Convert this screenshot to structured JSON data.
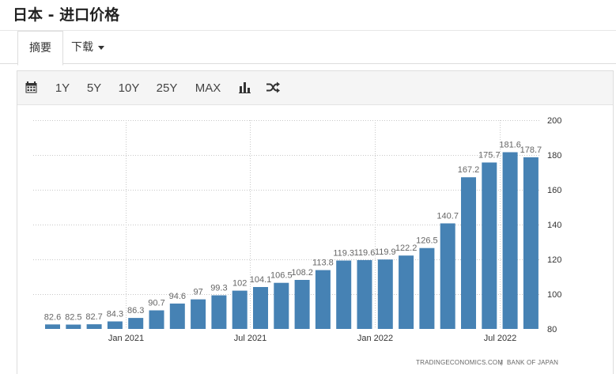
{
  "page": {
    "title": "日本 - 进口价格"
  },
  "tabs": [
    {
      "label": "摘要"
    },
    {
      "label": "下载"
    }
  ],
  "toolbar": {
    "calendar_icon": "calendar-icon",
    "ranges": [
      "1Y",
      "5Y",
      "10Y",
      "25Y",
      "MAX"
    ],
    "bar_chart_icon": "bar-chart-icon",
    "shuffle_icon": "shuffle-icon"
  },
  "source": {
    "left": "TRADINGECONOMICS.COM",
    "separator": "|",
    "right": "BANK OF JAPAN"
  },
  "chart_data": {
    "type": "bar",
    "title": "",
    "xlabel": "",
    "ylabel": "",
    "ylim": [
      80,
      200
    ],
    "yticks": [
      80,
      100,
      120,
      140,
      160,
      180,
      200
    ],
    "y_axis_side": "right",
    "grid": true,
    "bar_color": "#4682b4",
    "categories": [
      "2020-10",
      "2020-11",
      "2020-12",
      "2021-01",
      "2021-02",
      "2021-03",
      "2021-04",
      "2021-05",
      "2021-06",
      "2021-07",
      "2021-08",
      "2021-09",
      "2021-10",
      "2021-11",
      "2021-12",
      "2022-01",
      "2022-02",
      "2022-03",
      "2022-04",
      "2022-05",
      "2022-06",
      "2022-07",
      "2022-08",
      "2022-09"
    ],
    "values": [
      82.6,
      82.5,
      82.7,
      84.3,
      86.3,
      90.7,
      94.6,
      97,
      99.3,
      102,
      104.1,
      106.5,
      108.2,
      113.8,
      119.3,
      119.6,
      119.9,
      122.2,
      126.5,
      140.7,
      167.2,
      175.7,
      181.6,
      178.7
    ],
    "labels": [
      "82.6",
      "82.5",
      "82.7",
      "84.3",
      "86.3",
      "90.7",
      "94.6",
      "97",
      "99.3",
      "102",
      "104.1",
      "106.5",
      "108.2",
      "113.8",
      "119.3",
      "119.6",
      "119.9",
      "122.2",
      "126.5",
      "140.7",
      "167.2",
      "175.7",
      "181.6",
      "178.7"
    ],
    "xticks": [
      {
        "label": "Jan 2021",
        "index": 3.5
      },
      {
        "label": "Jul 2021",
        "index": 9.5
      },
      {
        "label": "Jan 2022",
        "index": 15.5
      },
      {
        "label": "Jul 2022",
        "index": 21.5
      }
    ]
  }
}
